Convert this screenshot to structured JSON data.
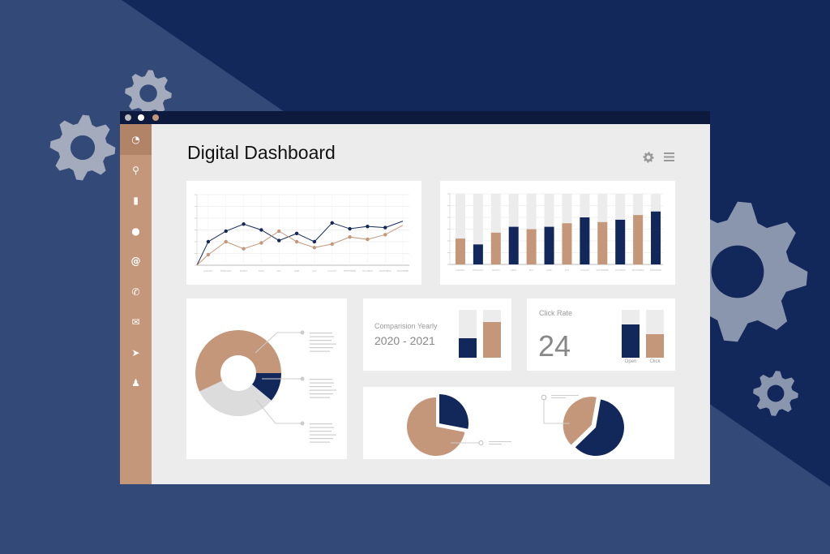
{
  "app": {
    "title": "Digital Dashboard"
  },
  "colors": {
    "navy": "#13285a",
    "tan": "#c4977a",
    "gray": "#dcdcdc",
    "track": "#ececec"
  },
  "window_controls": [
    "close",
    "minimize",
    "maximize"
  ],
  "sidebar": {
    "items": [
      {
        "icon": "dashboard-icon",
        "active": true
      },
      {
        "icon": "search-icon"
      },
      {
        "icon": "bar-chart-icon"
      },
      {
        "icon": "chat-icon"
      },
      {
        "icon": "at-icon"
      },
      {
        "icon": "phone-icon"
      },
      {
        "icon": "mail-icon"
      },
      {
        "icon": "send-icon"
      },
      {
        "icon": "user-icon"
      }
    ]
  },
  "header": {
    "icons": [
      "gear-icon",
      "menu-icon"
    ]
  },
  "comparison": {
    "label": "Comparision Yearly",
    "range": "2020 - 2021",
    "bars": [
      {
        "value": 0.4,
        "color": "navy"
      },
      {
        "value": 0.75,
        "color": "tan"
      }
    ]
  },
  "click_rate": {
    "label": "Click Rate",
    "value": "24",
    "bars": [
      {
        "label": "Open",
        "value": 0.7,
        "color": "navy"
      },
      {
        "label": "Click",
        "value": 0.5,
        "color": "tan"
      }
    ]
  },
  "chart_data": [
    {
      "type": "line",
      "categories": [
        "January",
        "February",
        "March",
        "April",
        "May",
        "June",
        "July",
        "August",
        "September",
        "October",
        "November",
        "December"
      ],
      "ylim": [
        0,
        6
      ],
      "grid": true,
      "series": [
        {
          "color": "navy",
          "values": [
            2.0,
            2.9,
            3.5,
            3.0,
            2.1,
            2.7,
            2.0,
            3.6,
            3.1,
            3.3,
            3.2,
            3.75
          ]
        },
        {
          "color": "tan",
          "values": [
            0.9,
            2.0,
            1.4,
            1.9,
            2.9,
            2.0,
            1.5,
            1.8,
            2.4,
            2.2,
            2.6,
            3.4
          ]
        }
      ]
    },
    {
      "type": "bar",
      "categories": [
        "January",
        "February",
        "March",
        "April",
        "May",
        "June",
        "July",
        "August",
        "September",
        "October",
        "November",
        "December"
      ],
      "ylim": [
        0,
        6
      ],
      "grid": true,
      "values": [
        2.2,
        1.7,
        2.7,
        3.2,
        3.0,
        3.2,
        3.5,
        4.0,
        3.6,
        3.8,
        4.2,
        4.5
      ],
      "colors": [
        "tan",
        "navy",
        "tan",
        "navy",
        "tan",
        "navy",
        "tan",
        "navy",
        "tan",
        "navy",
        "tan",
        "navy"
      ]
    },
    {
      "type": "pie",
      "style": "donut",
      "slices": [
        {
          "value": 57,
          "color": "tan"
        },
        {
          "value": 11,
          "color": "navy"
        },
        {
          "value": 32,
          "color": "gray"
        }
      ]
    },
    {
      "type": "pie",
      "slices": [
        {
          "value": 28,
          "color": "navy",
          "exploded": true
        },
        {
          "value": 72,
          "color": "tan"
        }
      ]
    },
    {
      "type": "pie",
      "slices": [
        {
          "value": 60,
          "color": "navy"
        },
        {
          "value": 40,
          "color": "tan",
          "exploded": true
        }
      ]
    }
  ]
}
